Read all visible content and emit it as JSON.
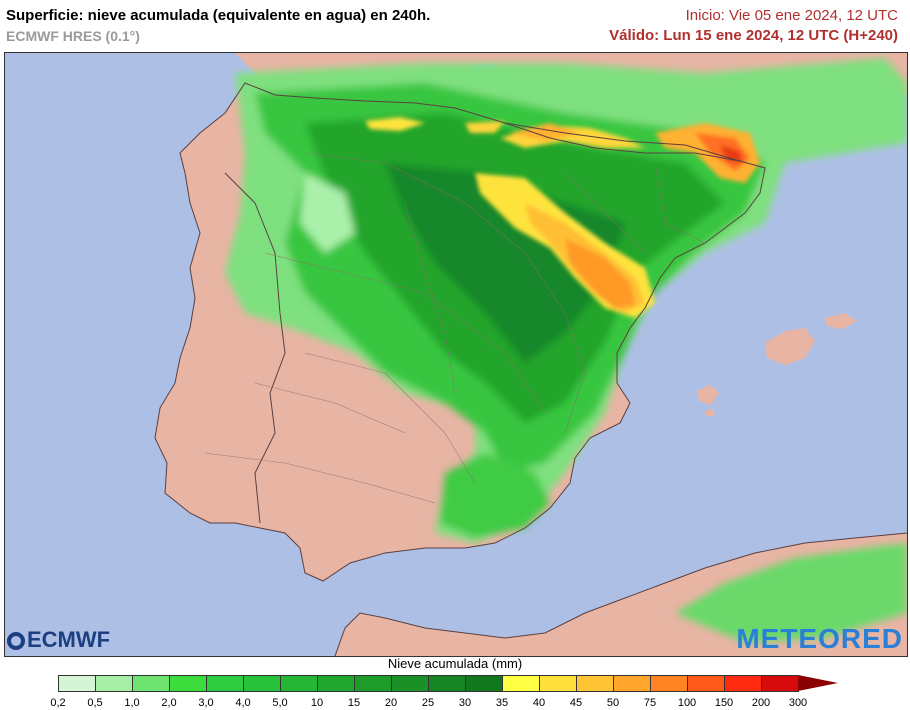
{
  "header": {
    "title": "Superficie: nieve acumulada (equivalente en agua) en 240h.",
    "subtitle": "ECMWF HRES (0.1°)",
    "init": "Inicio: Vie 05 ene 2024, 12 UTC",
    "valid": "Válido: Lun 15 ene 2024, 12 UTC (H+240)"
  },
  "logos": {
    "left": "ECMWF",
    "right": "METEORED"
  },
  "legend": {
    "title": "Nieve acumulada (mm)",
    "ticks": [
      "0,2",
      "0,5",
      "1,0",
      "2,0",
      "3,0",
      "4,0",
      "5,0",
      "10",
      "15",
      "20",
      "25",
      "30",
      "35",
      "40",
      "45",
      "50",
      "75",
      "100",
      "150",
      "200",
      "300"
    ],
    "colors": [
      "#d6f5d6",
      "#a6eda6",
      "#6fe36f",
      "#3ddc3d",
      "#2ecc40",
      "#28c23a",
      "#24b634",
      "#20a82e",
      "#1e9c2a",
      "#1a9026",
      "#168422",
      "#12781e",
      "#ffff44",
      "#ffe03c",
      "#ffc334",
      "#ffa52c",
      "#ff8424",
      "#ff5a1a",
      "#ff2a10",
      "#d60c0c"
    ],
    "overflow_color": "#8b0000"
  },
  "map": {
    "region": "Iberian Peninsula",
    "colors": {
      "sea": "#aebfe6",
      "land": "#e8b4a4",
      "border": "#7a5f5f"
    }
  }
}
